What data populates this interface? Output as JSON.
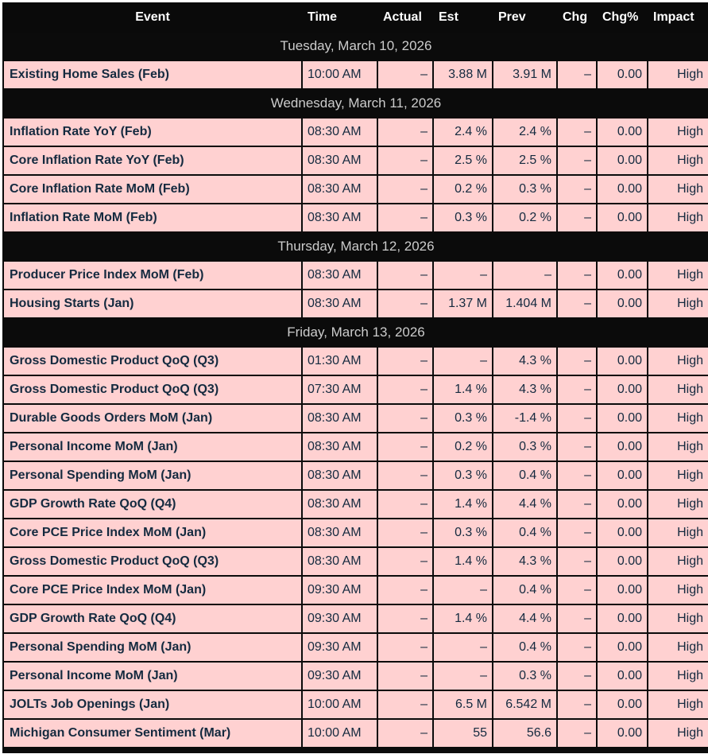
{
  "colors": {
    "header_bg": "#0a0a0a",
    "row_bg": "#ffd1d1",
    "row_text": "#142a3f",
    "date_text": "#cccccc",
    "grid_border": "#0b0b0b"
  },
  "table": {
    "columns": [
      {
        "key": "event",
        "label": "Event"
      },
      {
        "key": "time",
        "label": "Time"
      },
      {
        "key": "actual",
        "label": "Actual"
      },
      {
        "key": "est",
        "label": "Est"
      },
      {
        "key": "prev",
        "label": "Prev"
      },
      {
        "key": "chg",
        "label": "Chg"
      },
      {
        "key": "chgpct",
        "label": "Chg%"
      },
      {
        "key": "impact",
        "label": "Impact"
      }
    ],
    "sections": [
      {
        "date": "Tuesday, March 10, 2026",
        "rows": [
          {
            "event": "Existing Home Sales (Feb)",
            "time": "10:00 AM",
            "actual": "–",
            "est": "3.88 M",
            "prev": "3.91 M",
            "chg": "–",
            "chgpct": "0.00",
            "impact": "High"
          }
        ]
      },
      {
        "date": "Wednesday, March 11, 2026",
        "rows": [
          {
            "event": "Inflation Rate YoY (Feb)",
            "time": "08:30 AM",
            "actual": "–",
            "est": "2.4 %",
            "prev": "2.4 %",
            "chg": "–",
            "chgpct": "0.00",
            "impact": "High"
          },
          {
            "event": "Core Inflation Rate YoY (Feb)",
            "time": "08:30 AM",
            "actual": "–",
            "est": "2.5 %",
            "prev": "2.5 %",
            "chg": "–",
            "chgpct": "0.00",
            "impact": "High"
          },
          {
            "event": "Core Inflation Rate MoM (Feb)",
            "time": "08:30 AM",
            "actual": "–",
            "est": "0.2 %",
            "prev": "0.3 %",
            "chg": "–",
            "chgpct": "0.00",
            "impact": "High"
          },
          {
            "event": "Inflation Rate MoM (Feb)",
            "time": "08:30 AM",
            "actual": "–",
            "est": "0.3 %",
            "prev": "0.2 %",
            "chg": "–",
            "chgpct": "0.00",
            "impact": "High"
          }
        ]
      },
      {
        "date": "Thursday, March 12, 2026",
        "rows": [
          {
            "event": "Producer Price Index MoM (Feb)",
            "time": "08:30 AM",
            "actual": "–",
            "est": "–",
            "prev": "–",
            "chg": "–",
            "chgpct": "0.00",
            "impact": "High"
          },
          {
            "event": "Housing Starts (Jan)",
            "time": "08:30 AM",
            "actual": "–",
            "est": "1.37 M",
            "prev": "1.404 M",
            "chg": "–",
            "chgpct": "0.00",
            "impact": "High"
          }
        ]
      },
      {
        "date": "Friday, March 13, 2026",
        "rows": [
          {
            "event": "Gross Domestic Product QoQ (Q3)",
            "time": "01:30 AM",
            "actual": "–",
            "est": "–",
            "prev": "4.3 %",
            "chg": "–",
            "chgpct": "0.00",
            "impact": "High"
          },
          {
            "event": "Gross Domestic Product QoQ (Q3)",
            "time": "07:30 AM",
            "actual": "–",
            "est": "1.4 %",
            "prev": "4.3 %",
            "chg": "–",
            "chgpct": "0.00",
            "impact": "High"
          },
          {
            "event": "Durable Goods Orders MoM (Jan)",
            "time": "08:30 AM",
            "actual": "–",
            "est": "0.3 %",
            "prev": "-1.4 %",
            "chg": "–",
            "chgpct": "0.00",
            "impact": "High"
          },
          {
            "event": "Personal Income MoM (Jan)",
            "time": "08:30 AM",
            "actual": "–",
            "est": "0.2 %",
            "prev": "0.3 %",
            "chg": "–",
            "chgpct": "0.00",
            "impact": "High"
          },
          {
            "event": "Personal Spending MoM (Jan)",
            "time": "08:30 AM",
            "actual": "–",
            "est": "0.3 %",
            "prev": "0.4 %",
            "chg": "–",
            "chgpct": "0.00",
            "impact": "High"
          },
          {
            "event": "GDP Growth Rate QoQ (Q4)",
            "time": "08:30 AM",
            "actual": "–",
            "est": "1.4 %",
            "prev": "4.4 %",
            "chg": "–",
            "chgpct": "0.00",
            "impact": "High"
          },
          {
            "event": "Core PCE Price Index MoM (Jan)",
            "time": "08:30 AM",
            "actual": "–",
            "est": "0.3 %",
            "prev": "0.4 %",
            "chg": "–",
            "chgpct": "0.00",
            "impact": "High"
          },
          {
            "event": "Gross Domestic Product QoQ (Q3)",
            "time": "08:30 AM",
            "actual": "–",
            "est": "1.4 %",
            "prev": "4.3 %",
            "chg": "–",
            "chgpct": "0.00",
            "impact": "High"
          },
          {
            "event": "Core PCE Price Index MoM (Jan)",
            "time": "09:30 AM",
            "actual": "–",
            "est": "–",
            "prev": "0.4 %",
            "chg": "–",
            "chgpct": "0.00",
            "impact": "High"
          },
          {
            "event": "GDP Growth Rate QoQ (Q4)",
            "time": "09:30 AM",
            "actual": "–",
            "est": "1.4 %",
            "prev": "4.4 %",
            "chg": "–",
            "chgpct": "0.00",
            "impact": "High"
          },
          {
            "event": "Personal Spending MoM (Jan)",
            "time": "09:30 AM",
            "actual": "–",
            "est": "–",
            "prev": "0.4 %",
            "chg": "–",
            "chgpct": "0.00",
            "impact": "High"
          },
          {
            "event": "Personal Income MoM (Jan)",
            "time": "09:30 AM",
            "actual": "–",
            "est": "–",
            "prev": "0.3 %",
            "chg": "–",
            "chgpct": "0.00",
            "impact": "High"
          },
          {
            "event": "JOLTs Job Openings (Jan)",
            "time": "10:00 AM",
            "actual": "–",
            "est": "6.5 M",
            "prev": "6.542 M",
            "chg": "–",
            "chgpct": "0.00",
            "impact": "High"
          },
          {
            "event": "Michigan Consumer Sentiment (Mar)",
            "time": "10:00 AM",
            "actual": "–",
            "est": "55",
            "prev": "56.6",
            "chg": "–",
            "chgpct": "0.00",
            "impact": "High"
          }
        ]
      }
    ]
  }
}
